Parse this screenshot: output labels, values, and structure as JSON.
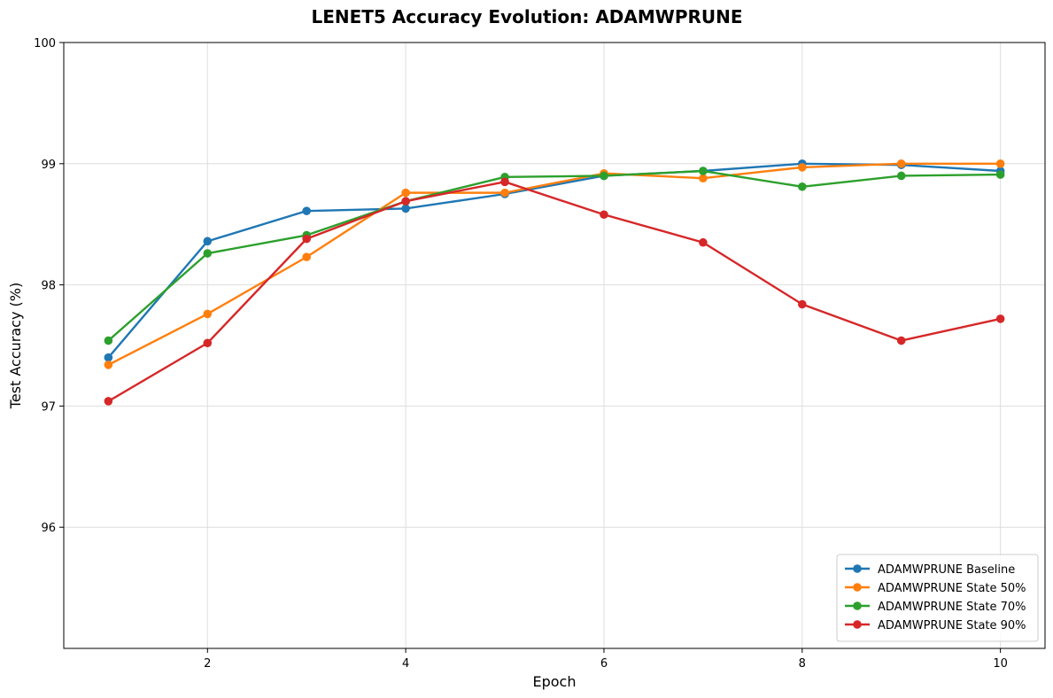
{
  "chart_data": {
    "type": "line",
    "title": "LENET5 Accuracy Evolution: ADAMWPRUNE",
    "xlabel": "Epoch",
    "ylabel": "Test Accuracy (%)",
    "xlim": [
      0.55,
      10.45
    ],
    "ylim": [
      95.0,
      100.0
    ],
    "xticks": [
      2,
      4,
      6,
      8,
      10
    ],
    "yticks": [
      96,
      97,
      98,
      99,
      100
    ],
    "grid": true,
    "legend_position": "bottom-right",
    "x": [
      1,
      2,
      3,
      4,
      5,
      6,
      7,
      8,
      9,
      10
    ],
    "series": [
      {
        "name": "ADAMWPRUNE Baseline",
        "color": "#1f77b4",
        "values": [
          97.4,
          98.36,
          98.61,
          98.63,
          98.75,
          98.9,
          98.94,
          99.0,
          98.99,
          98.94
        ]
      },
      {
        "name": "ADAMWPRUNE State 50%",
        "color": "#ff7f0e",
        "values": [
          97.34,
          97.76,
          98.23,
          98.76,
          98.76,
          98.92,
          98.88,
          98.97,
          99.0,
          99.0
        ]
      },
      {
        "name": "ADAMWPRUNE State 70%",
        "color": "#2ca02c",
        "values": [
          97.54,
          98.26,
          98.41,
          98.69,
          98.89,
          98.9,
          98.94,
          98.81,
          98.9,
          98.91
        ]
      },
      {
        "name": "ADAMWPRUNE State 90%",
        "color": "#d62728",
        "values": [
          97.04,
          97.52,
          98.38,
          98.69,
          98.85,
          98.58,
          98.35,
          97.84,
          97.54,
          97.72
        ]
      }
    ]
  }
}
